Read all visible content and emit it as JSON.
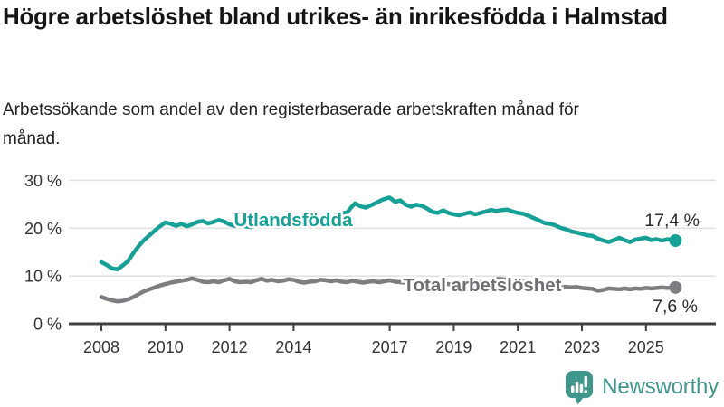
{
  "header": {
    "title": "Högre arbetslöshet bland utrikes- än inrikesfödda i Halmstad",
    "subtitle": "Arbetssökande som andel av den registerbaserade arbetskraften månad för månad."
  },
  "chart_data": {
    "type": "line",
    "unit": "%",
    "grid": "horizontal-only",
    "legend": "inline-labels-on-lines",
    "x_axis": {
      "ticks": [
        2008,
        2010,
        2012,
        2014,
        2017,
        2019,
        2021,
        2023,
        2025
      ],
      "xlim": [
        2007.9,
        2026.3
      ]
    },
    "y_axis": {
      "ticks": [
        0,
        10,
        20,
        30
      ],
      "tick_suffix": " %",
      "ylim": [
        0,
        30
      ]
    },
    "series": [
      {
        "name": "Utlandsfödda",
        "slug": "utlandsfodda",
        "color": "#16A096",
        "label_color": "#16A096",
        "end_label": "17,4 %",
        "end_value": 17.4,
        "points": [
          [
            2008.0,
            12.9
          ],
          [
            2008.17,
            12.3
          ],
          [
            2008.33,
            11.6
          ],
          [
            2008.5,
            11.4
          ],
          [
            2008.67,
            12.2
          ],
          [
            2008.83,
            13.1
          ],
          [
            2009.0,
            14.8
          ],
          [
            2009.17,
            16.3
          ],
          [
            2009.33,
            17.5
          ],
          [
            2009.5,
            18.5
          ],
          [
            2009.67,
            19.5
          ],
          [
            2009.83,
            20.4
          ],
          [
            2010.0,
            21.2
          ],
          [
            2010.17,
            20.9
          ],
          [
            2010.33,
            20.5
          ],
          [
            2010.5,
            20.9
          ],
          [
            2010.67,
            20.4
          ],
          [
            2010.83,
            20.8
          ],
          [
            2011.0,
            21.3
          ],
          [
            2011.17,
            21.5
          ],
          [
            2011.33,
            21.0
          ],
          [
            2011.5,
            21.3
          ],
          [
            2011.67,
            21.7
          ],
          [
            2011.83,
            21.4
          ],
          [
            2012.0,
            20.8
          ],
          [
            2012.17,
            20.5
          ],
          [
            2012.33,
            20.9
          ],
          [
            2012.5,
            20.4
          ],
          [
            2012.67,
            20.2
          ],
          [
            2012.83,
            20.5
          ],
          [
            2013.0,
            20.8
          ],
          [
            2013.17,
            20.9
          ],
          [
            2013.33,
            20.5
          ],
          [
            2013.5,
            20.3
          ],
          [
            2013.67,
            20.6
          ],
          [
            2013.83,
            20.9
          ],
          [
            2014.0,
            21.1
          ],
          [
            2014.17,
            21.4
          ],
          [
            2014.33,
            21.1
          ],
          [
            2014.5,
            20.8
          ],
          [
            2014.67,
            21.0
          ],
          [
            2014.83,
            21.4
          ],
          [
            2015.0,
            21.8
          ],
          [
            2015.17,
            22.2
          ],
          [
            2015.33,
            22.7
          ],
          [
            2015.5,
            23.1
          ],
          [
            2015.67,
            23.3
          ],
          [
            2015.83,
            24.6
          ],
          [
            2015.92,
            25.2
          ],
          [
            2016.08,
            24.6
          ],
          [
            2016.25,
            24.3
          ],
          [
            2016.42,
            24.8
          ],
          [
            2016.58,
            25.3
          ],
          [
            2016.75,
            25.9
          ],
          [
            2016.92,
            26.3
          ],
          [
            2017.0,
            26.4
          ],
          [
            2017.17,
            25.5
          ],
          [
            2017.33,
            25.8
          ],
          [
            2017.5,
            24.9
          ],
          [
            2017.67,
            24.5
          ],
          [
            2017.83,
            24.9
          ],
          [
            2018.0,
            24.7
          ],
          [
            2018.17,
            24.1
          ],
          [
            2018.33,
            23.4
          ],
          [
            2018.5,
            23.2
          ],
          [
            2018.67,
            23.7
          ],
          [
            2018.83,
            23.2
          ],
          [
            2019.0,
            22.9
          ],
          [
            2019.17,
            22.7
          ],
          [
            2019.33,
            23.0
          ],
          [
            2019.5,
            23.3
          ],
          [
            2019.67,
            22.9
          ],
          [
            2019.83,
            23.2
          ],
          [
            2020.0,
            23.5
          ],
          [
            2020.17,
            23.8
          ],
          [
            2020.33,
            23.6
          ],
          [
            2020.5,
            23.8
          ],
          [
            2020.67,
            23.9
          ],
          [
            2020.83,
            23.5
          ],
          [
            2021.0,
            23.2
          ],
          [
            2021.17,
            23.0
          ],
          [
            2021.33,
            22.6
          ],
          [
            2021.5,
            22.1
          ],
          [
            2021.67,
            21.6
          ],
          [
            2021.83,
            21.1
          ],
          [
            2022.0,
            20.9
          ],
          [
            2022.17,
            20.6
          ],
          [
            2022.33,
            20.1
          ],
          [
            2022.5,
            19.8
          ],
          [
            2022.67,
            19.3
          ],
          [
            2022.83,
            19.1
          ],
          [
            2023.0,
            18.8
          ],
          [
            2023.17,
            18.5
          ],
          [
            2023.33,
            18.4
          ],
          [
            2023.5,
            17.8
          ],
          [
            2023.67,
            17.4
          ],
          [
            2023.83,
            17.1
          ],
          [
            2024.0,
            17.5
          ],
          [
            2024.17,
            18.0
          ],
          [
            2024.33,
            17.5
          ],
          [
            2024.5,
            17.1
          ],
          [
            2024.67,
            17.6
          ],
          [
            2024.83,
            17.8
          ],
          [
            2025.0,
            18.0
          ],
          [
            2025.17,
            17.5
          ],
          [
            2025.33,
            17.7
          ],
          [
            2025.5,
            17.4
          ],
          [
            2025.67,
            17.7
          ],
          [
            2025.83,
            17.5
          ],
          [
            2025.92,
            17.4
          ]
        ]
      },
      {
        "name": "Total arbetslöshet",
        "slug": "total-arbetsloshet",
        "color": "#7D7D82",
        "label_color": "#6E6E73",
        "end_label": "7,6 %",
        "end_value": 7.6,
        "points": [
          [
            2008.0,
            5.6
          ],
          [
            2008.17,
            5.2
          ],
          [
            2008.33,
            4.9
          ],
          [
            2008.5,
            4.7
          ],
          [
            2008.67,
            4.8
          ],
          [
            2008.83,
            5.1
          ],
          [
            2009.0,
            5.6
          ],
          [
            2009.17,
            6.2
          ],
          [
            2009.33,
            6.8
          ],
          [
            2009.5,
            7.2
          ],
          [
            2009.67,
            7.6
          ],
          [
            2009.83,
            8.0
          ],
          [
            2010.0,
            8.3
          ],
          [
            2010.17,
            8.6
          ],
          [
            2010.33,
            8.8
          ],
          [
            2010.5,
            9.0
          ],
          [
            2010.67,
            9.2
          ],
          [
            2010.83,
            9.5
          ],
          [
            2011.0,
            9.2
          ],
          [
            2011.17,
            8.8
          ],
          [
            2011.33,
            8.7
          ],
          [
            2011.5,
            8.9
          ],
          [
            2011.67,
            8.7
          ],
          [
            2011.83,
            9.1
          ],
          [
            2012.0,
            9.4
          ],
          [
            2012.17,
            8.9
          ],
          [
            2012.33,
            8.7
          ],
          [
            2012.5,
            8.8
          ],
          [
            2012.67,
            8.7
          ],
          [
            2012.83,
            9.1
          ],
          [
            2013.0,
            9.4
          ],
          [
            2013.17,
            9.0
          ],
          [
            2013.33,
            9.2
          ],
          [
            2013.5,
            8.9
          ],
          [
            2013.67,
            9.0
          ],
          [
            2013.83,
            9.3
          ],
          [
            2014.0,
            9.2
          ],
          [
            2014.17,
            8.8
          ],
          [
            2014.33,
            8.6
          ],
          [
            2014.5,
            8.8
          ],
          [
            2014.67,
            8.9
          ],
          [
            2014.83,
            9.2
          ],
          [
            2015.0,
            9.1
          ],
          [
            2015.17,
            8.9
          ],
          [
            2015.33,
            9.1
          ],
          [
            2015.5,
            8.8
          ],
          [
            2015.67,
            8.7
          ],
          [
            2015.83,
            9.0
          ],
          [
            2016.0,
            8.8
          ],
          [
            2016.17,
            8.6
          ],
          [
            2016.33,
            8.8
          ],
          [
            2016.5,
            8.9
          ],
          [
            2016.67,
            8.7
          ],
          [
            2016.83,
            8.9
          ],
          [
            2017.0,
            9.1
          ],
          [
            2017.17,
            8.8
          ],
          [
            2017.33,
            8.7
          ],
          [
            2017.5,
            8.6
          ],
          [
            2017.67,
            8.7
          ],
          [
            2017.83,
            8.8
          ],
          [
            2018.0,
            8.6
          ],
          [
            2018.17,
            8.4
          ],
          [
            2018.33,
            8.3
          ],
          [
            2018.5,
            8.4
          ],
          [
            2018.67,
            8.5
          ],
          [
            2018.83,
            8.3
          ],
          [
            2019.0,
            8.2
          ],
          [
            2019.17,
            8.2
          ],
          [
            2019.33,
            8.3
          ],
          [
            2019.5,
            8.4
          ],
          [
            2019.67,
            8.5
          ],
          [
            2019.83,
            8.7
          ],
          [
            2020.0,
            8.8
          ],
          [
            2020.17,
            9.1
          ],
          [
            2020.33,
            9.4
          ],
          [
            2020.5,
            9.3
          ],
          [
            2020.67,
            9.2
          ],
          [
            2020.83,
            9.1
          ],
          [
            2021.0,
            8.9
          ],
          [
            2021.17,
            8.8
          ],
          [
            2021.33,
            8.6
          ],
          [
            2021.5,
            8.4
          ],
          [
            2021.67,
            8.3
          ],
          [
            2021.83,
            8.1
          ],
          [
            2022.0,
            8.0
          ],
          [
            2022.17,
            7.9
          ],
          [
            2022.33,
            7.8
          ],
          [
            2022.5,
            7.7
          ],
          [
            2022.67,
            7.6
          ],
          [
            2022.83,
            7.7
          ],
          [
            2023.0,
            7.5
          ],
          [
            2023.17,
            7.4
          ],
          [
            2023.33,
            7.3
          ],
          [
            2023.5,
            6.9
          ],
          [
            2023.67,
            7.1
          ],
          [
            2023.83,
            7.4
          ],
          [
            2024.0,
            7.3
          ],
          [
            2024.17,
            7.2
          ],
          [
            2024.33,
            7.4
          ],
          [
            2024.5,
            7.2
          ],
          [
            2024.67,
            7.4
          ],
          [
            2024.83,
            7.3
          ],
          [
            2025.0,
            7.5
          ],
          [
            2025.17,
            7.4
          ],
          [
            2025.33,
            7.5
          ],
          [
            2025.5,
            7.6
          ],
          [
            2025.67,
            7.5
          ],
          [
            2025.83,
            7.6
          ],
          [
            2025.92,
            7.6
          ]
        ]
      }
    ],
    "colors": {
      "gridline": "#E2E2E2",
      "axis": "#3F3F3F",
      "tick_text": "#333333",
      "value_label_text": "#2B2B2B"
    }
  },
  "footer": {
    "brand": "Newsworthy",
    "brand_color": "#3F968B",
    "logo_icon": "bar-chart-speech-bubble-icon"
  }
}
